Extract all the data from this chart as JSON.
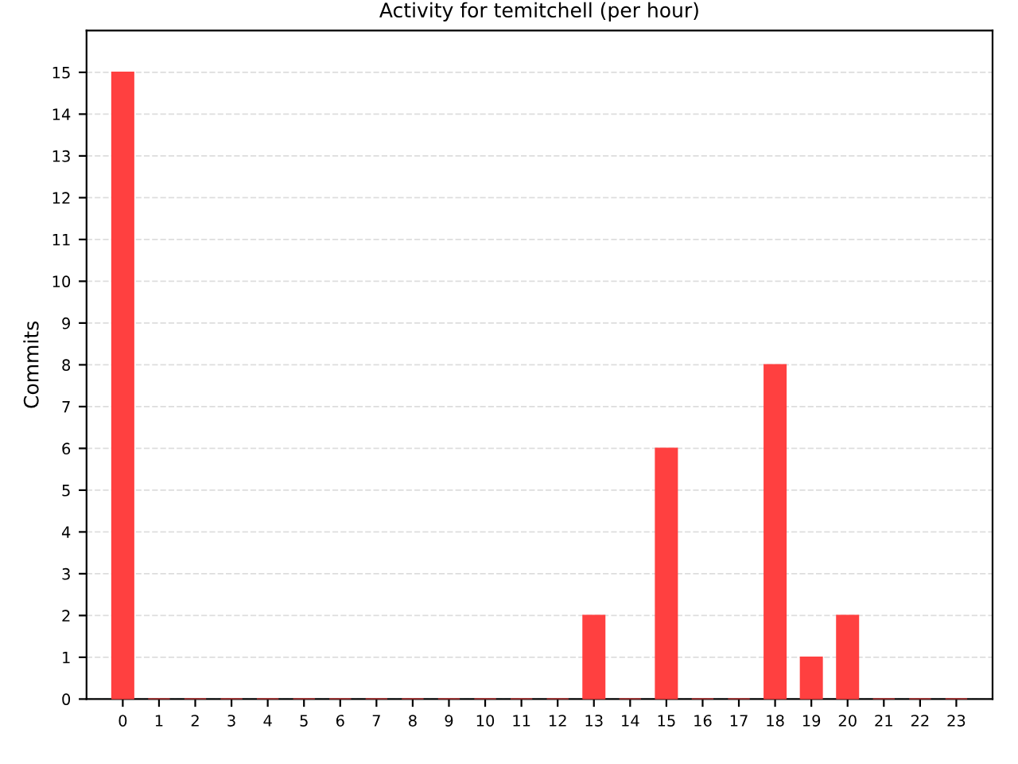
{
  "chart_data": {
    "type": "bar",
    "title": "Activity for temitchell (per hour)",
    "ylabel": "Commits",
    "categories": [
      "0",
      "1",
      "2",
      "3",
      "4",
      "5",
      "6",
      "7",
      "8",
      "9",
      "10",
      "11",
      "12",
      "13",
      "14",
      "15",
      "16",
      "17",
      "18",
      "19",
      "20",
      "21",
      "22",
      "23"
    ],
    "values": [
      15,
      0,
      0,
      0,
      0,
      0,
      0,
      0,
      0,
      0,
      0,
      0,
      0,
      2,
      0,
      6,
      0,
      0,
      8,
      1,
      2,
      0,
      0,
      0
    ],
    "color": "#ff4040",
    "ylim": [
      0,
      16
    ],
    "yticks": [
      0,
      1,
      2,
      3,
      4,
      5,
      6,
      7,
      8,
      9,
      10,
      11,
      12,
      13,
      14,
      15
    ],
    "grid": "y",
    "legend": false
  }
}
